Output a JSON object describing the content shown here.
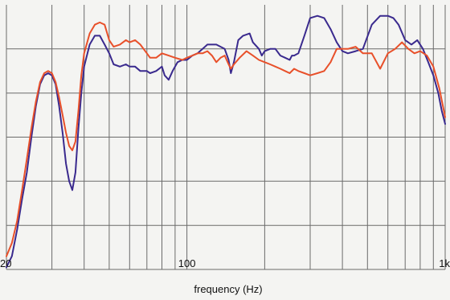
{
  "chart_data": {
    "type": "line",
    "title": "",
    "xlabel": "frequency (Hz)",
    "ylabel": "",
    "x_scale": "log",
    "xlim": [
      20,
      1000
    ],
    "ylim": [
      0,
      6
    ],
    "grid": true,
    "x_tick_labels": [
      {
        "value": 20,
        "label": "20"
      },
      {
        "value": 100,
        "label": "100"
      },
      {
        "value": 1000,
        "label": "1k"
      }
    ],
    "x_gridlines": [
      20,
      30,
      40,
      50,
      60,
      70,
      80,
      90,
      100,
      200,
      300,
      400,
      500,
      600,
      700,
      800,
      900,
      1000
    ],
    "y_gridlines": [
      1,
      2,
      3,
      4,
      5
    ],
    "series": [
      {
        "color": "#3a2a8e",
        "points": [
          [
            20,
            0.05
          ],
          [
            21,
            0.3
          ],
          [
            22,
            0.9
          ],
          [
            23,
            1.6
          ],
          [
            24,
            2.2
          ],
          [
            25,
            3.0
          ],
          [
            26,
            3.7
          ],
          [
            27,
            4.2
          ],
          [
            28,
            4.4
          ],
          [
            29,
            4.45
          ],
          [
            30,
            4.4
          ],
          [
            31,
            4.2
          ],
          [
            32,
            3.7
          ],
          [
            33,
            3.1
          ],
          [
            34,
            2.4
          ],
          [
            35,
            2.0
          ],
          [
            36,
            1.8
          ],
          [
            37,
            2.2
          ],
          [
            38,
            3.2
          ],
          [
            39,
            4.0
          ],
          [
            40,
            4.6
          ],
          [
            42,
            5.1
          ],
          [
            44,
            5.3
          ],
          [
            46,
            5.3
          ],
          [
            48,
            5.1
          ],
          [
            50,
            4.9
          ],
          [
            52,
            4.65
          ],
          [
            55,
            4.6
          ],
          [
            58,
            4.65
          ],
          [
            60,
            4.6
          ],
          [
            63,
            4.6
          ],
          [
            66,
            4.5
          ],
          [
            70,
            4.5
          ],
          [
            72,
            4.45
          ],
          [
            76,
            4.5
          ],
          [
            80,
            4.6
          ],
          [
            82,
            4.4
          ],
          [
            85,
            4.3
          ],
          [
            88,
            4.5
          ],
          [
            92,
            4.7
          ],
          [
            96,
            4.75
          ],
          [
            100,
            4.75
          ],
          [
            105,
            4.85
          ],
          [
            110,
            4.9
          ],
          [
            115,
            5.0
          ],
          [
            120,
            5.1
          ],
          [
            130,
            5.1
          ],
          [
            140,
            5.0
          ],
          [
            145,
            4.75
          ],
          [
            148,
            4.45
          ],
          [
            152,
            4.7
          ],
          [
            158,
            5.2
          ],
          [
            165,
            5.3
          ],
          [
            175,
            5.35
          ],
          [
            180,
            5.15
          ],
          [
            190,
            5.0
          ],
          [
            195,
            4.85
          ],
          [
            200,
            4.95
          ],
          [
            210,
            5.0
          ],
          [
            220,
            5.0
          ],
          [
            230,
            4.85
          ],
          [
            240,
            4.8
          ],
          [
            250,
            4.75
          ],
          [
            255,
            4.85
          ],
          [
            260,
            4.85
          ],
          [
            270,
            4.9
          ],
          [
            285,
            5.3
          ],
          [
            300,
            5.7
          ],
          [
            320,
            5.75
          ],
          [
            340,
            5.7
          ],
          [
            360,
            5.45
          ],
          [
            380,
            5.15
          ],
          [
            400,
            4.95
          ],
          [
            420,
            4.9
          ],
          [
            450,
            4.95
          ],
          [
            480,
            5.0
          ],
          [
            520,
            5.55
          ],
          [
            560,
            5.75
          ],
          [
            600,
            5.75
          ],
          [
            630,
            5.7
          ],
          [
            660,
            5.55
          ],
          [
            700,
            5.2
          ],
          [
            740,
            5.1
          ],
          [
            780,
            5.2
          ],
          [
            820,
            5.0
          ],
          [
            860,
            4.7
          ],
          [
            900,
            4.4
          ],
          [
            940,
            4.0
          ],
          [
            970,
            3.6
          ],
          [
            1000,
            3.3
          ]
        ]
      },
      {
        "color": "#e8502a",
        "points": [
          [
            20,
            0.3
          ],
          [
            21,
            0.6
          ],
          [
            22,
            1.1
          ],
          [
            23,
            1.8
          ],
          [
            24,
            2.5
          ],
          [
            25,
            3.2
          ],
          [
            26,
            3.8
          ],
          [
            27,
            4.25
          ],
          [
            28,
            4.45
          ],
          [
            29,
            4.5
          ],
          [
            30,
            4.45
          ],
          [
            31,
            4.25
          ],
          [
            32,
            3.9
          ],
          [
            33,
            3.5
          ],
          [
            34,
            3.1
          ],
          [
            35,
            2.8
          ],
          [
            36,
            2.7
          ],
          [
            37,
            2.9
          ],
          [
            38,
            3.6
          ],
          [
            39,
            4.4
          ],
          [
            40,
            4.9
          ],
          [
            42,
            5.35
          ],
          [
            44,
            5.55
          ],
          [
            46,
            5.6
          ],
          [
            48,
            5.55
          ],
          [
            50,
            5.2
          ],
          [
            52,
            5.05
          ],
          [
            55,
            5.1
          ],
          [
            58,
            5.2
          ],
          [
            60,
            5.15
          ],
          [
            63,
            5.2
          ],
          [
            66,
            5.1
          ],
          [
            70,
            4.9
          ],
          [
            72,
            4.8
          ],
          [
            76,
            4.8
          ],
          [
            80,
            4.9
          ],
          [
            85,
            4.85
          ],
          [
            90,
            4.8
          ],
          [
            96,
            4.75
          ],
          [
            100,
            4.8
          ],
          [
            105,
            4.85
          ],
          [
            110,
            4.9
          ],
          [
            115,
            4.9
          ],
          [
            120,
            4.95
          ],
          [
            125,
            4.85
          ],
          [
            130,
            4.7
          ],
          [
            135,
            4.8
          ],
          [
            140,
            4.85
          ],
          [
            145,
            4.65
          ],
          [
            148,
            4.55
          ],
          [
            152,
            4.65
          ],
          [
            160,
            4.8
          ],
          [
            170,
            4.95
          ],
          [
            180,
            4.85
          ],
          [
            190,
            4.75
          ],
          [
            200,
            4.7
          ],
          [
            210,
            4.65
          ],
          [
            220,
            4.6
          ],
          [
            230,
            4.55
          ],
          [
            240,
            4.5
          ],
          [
            250,
            4.45
          ],
          [
            260,
            4.55
          ],
          [
            270,
            4.5
          ],
          [
            285,
            4.45
          ],
          [
            300,
            4.4
          ],
          [
            320,
            4.45
          ],
          [
            340,
            4.5
          ],
          [
            360,
            4.7
          ],
          [
            380,
            5.0
          ],
          [
            400,
            5.0
          ],
          [
            420,
            5.0
          ],
          [
            450,
            5.05
          ],
          [
            480,
            4.9
          ],
          [
            520,
            4.9
          ],
          [
            560,
            4.55
          ],
          [
            600,
            4.9
          ],
          [
            640,
            5.0
          ],
          [
            680,
            5.15
          ],
          [
            720,
            5.0
          ],
          [
            760,
            4.9
          ],
          [
            800,
            4.95
          ],
          [
            850,
            4.85
          ],
          [
            900,
            4.6
          ],
          [
            950,
            4.1
          ],
          [
            1000,
            3.45
          ]
        ]
      }
    ]
  }
}
